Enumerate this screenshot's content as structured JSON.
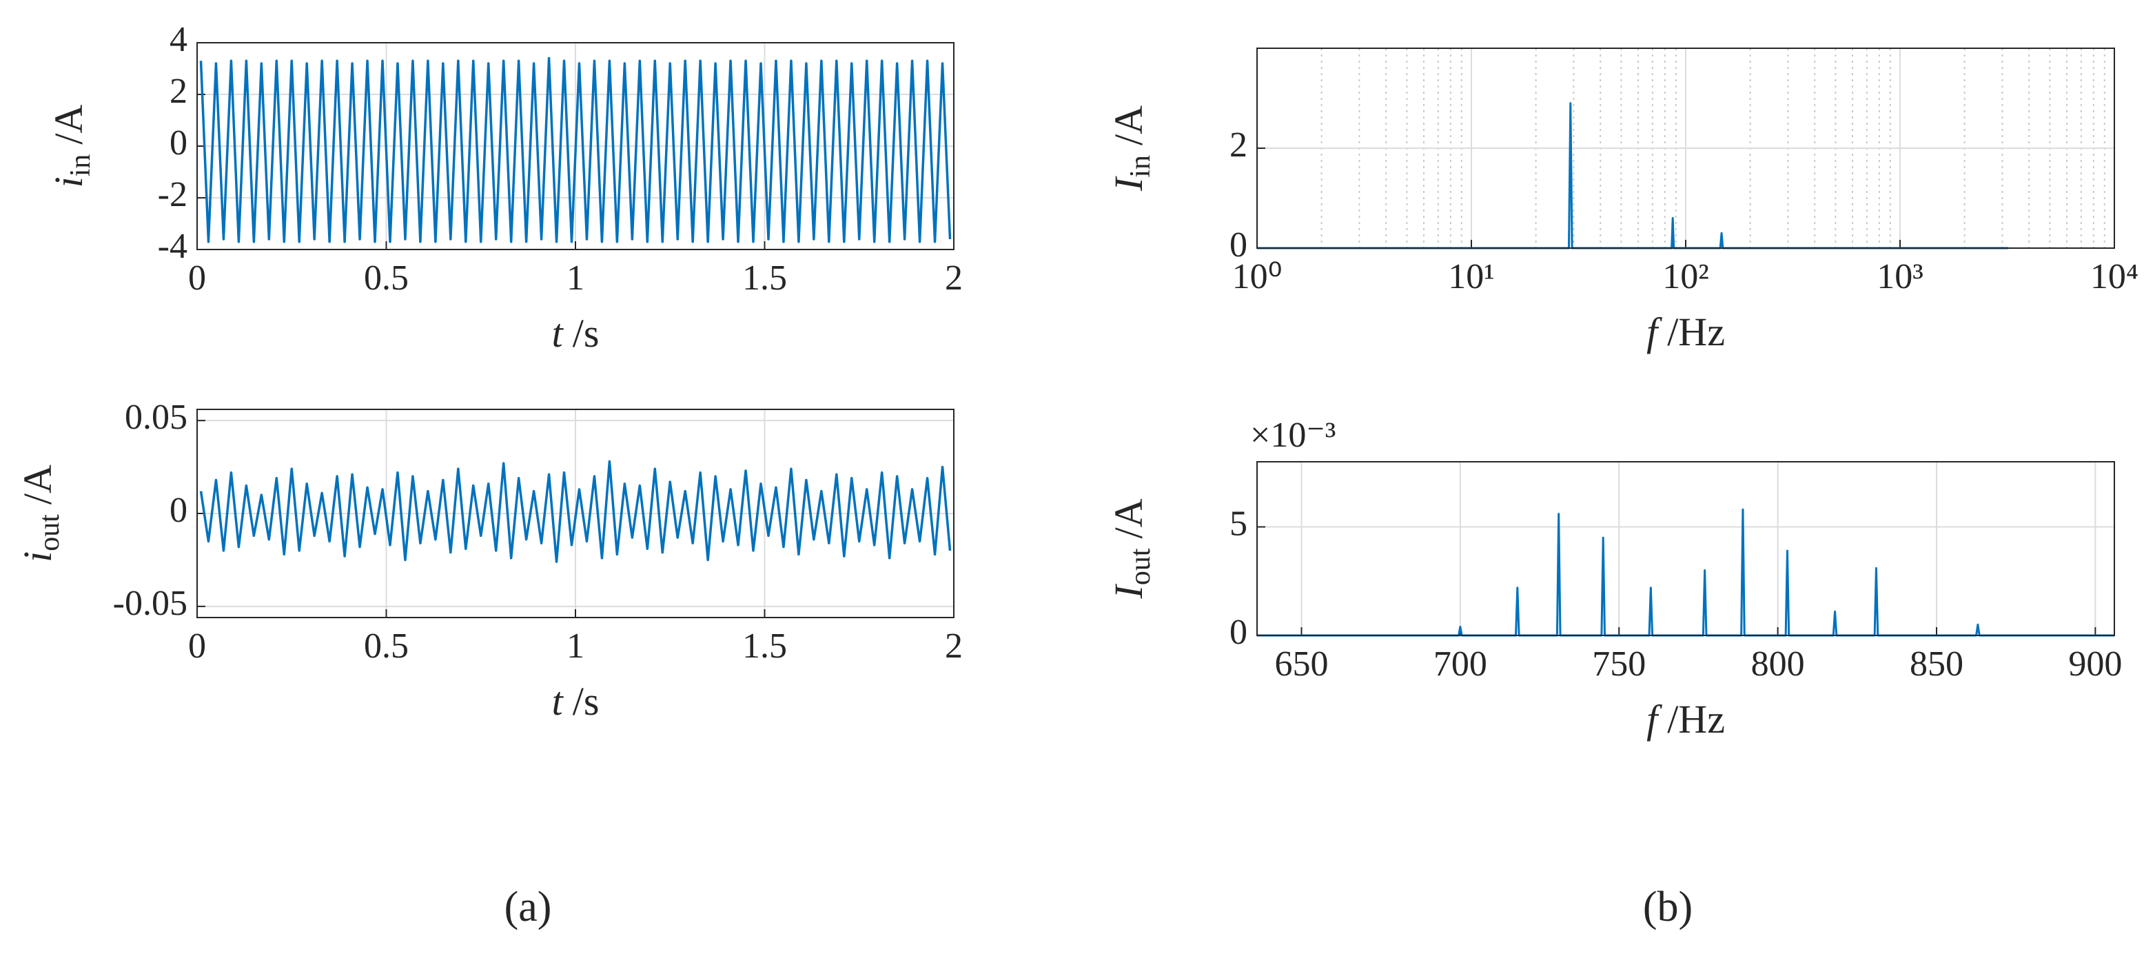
{
  "chart_data": [
    {
      "type": "line",
      "color": "#0072bd",
      "grid": true,
      "xlabel_symbol": "t",
      "xlabel_unit": "/s",
      "ylabel_symbol": "i",
      "ylabel_subscript": "in",
      "ylabel_unit": "/A",
      "xlim": [
        0,
        2
      ],
      "xticks": [
        0,
        0.5,
        1,
        1.5,
        2
      ],
      "ylim": [
        -4,
        4
      ],
      "yticks": [
        -4,
        -2,
        0,
        2,
        4
      ],
      "x": [
        0.01,
        0.03,
        0.05,
        0.07,
        0.09,
        0.11,
        0.13,
        0.15,
        0.17,
        0.19,
        0.21,
        0.23,
        0.25,
        0.27,
        0.29,
        0.31,
        0.33,
        0.35,
        0.37,
        0.39,
        0.41,
        0.43,
        0.45,
        0.47,
        0.49,
        0.51,
        0.53,
        0.55,
        0.57,
        0.59,
        0.61,
        0.63,
        0.65,
        0.67,
        0.69,
        0.71,
        0.73,
        0.75,
        0.77,
        0.79,
        0.81,
        0.83,
        0.85,
        0.87,
        0.89,
        0.91,
        0.93,
        0.95,
        0.97,
        0.99,
        1.01,
        1.03,
        1.05,
        1.07,
        1.09,
        1.11,
        1.13,
        1.15,
        1.17,
        1.19,
        1.21,
        1.23,
        1.25,
        1.27,
        1.29,
        1.31,
        1.33,
        1.35,
        1.37,
        1.39,
        1.41,
        1.43,
        1.45,
        1.47,
        1.49,
        1.51,
        1.53,
        1.55,
        1.57,
        1.59,
        1.61,
        1.63,
        1.65,
        1.67,
        1.69,
        1.71,
        1.73,
        1.75,
        1.77,
        1.79,
        1.81,
        1.83,
        1.85,
        1.87,
        1.89,
        1.91,
        1.93,
        1.95,
        1.97,
        1.99
      ],
      "values": [
        3.3,
        -3.7,
        3.2,
        -3.6,
        3.3,
        -3.7,
        3.3,
        -3.7,
        3.2,
        -3.6,
        3.3,
        -3.7,
        3.3,
        -3.7,
        3.2,
        -3.6,
        3.3,
        -3.7,
        3.3,
        -3.7,
        3.2,
        -3.6,
        3.3,
        -3.7,
        3.3,
        -3.7,
        3.2,
        -3.6,
        3.3,
        -3.7,
        3.3,
        -3.7,
        3.2,
        -3.6,
        3.3,
        -3.7,
        3.3,
        -3.7,
        3.2,
        -3.6,
        3.3,
        -3.7,
        3.3,
        -3.7,
        3.2,
        -3.6,
        3.4,
        -3.7,
        3.3,
        -3.7,
        3.2,
        -3.6,
        3.3,
        -3.7,
        3.3,
        -3.7,
        3.2,
        -3.6,
        3.3,
        -3.7,
        3.3,
        -3.7,
        3.2,
        -3.6,
        3.3,
        -3.7,
        3.3,
        -3.7,
        3.2,
        -3.6,
        3.3,
        -3.7,
        3.3,
        -3.7,
        3.2,
        -3.6,
        3.3,
        -3.7,
        3.3,
        -3.7,
        3.2,
        -3.6,
        3.3,
        -3.7,
        3.3,
        -3.7,
        3.2,
        -3.6,
        3.3,
        -3.7,
        3.3,
        -3.7,
        3.2,
        -3.6,
        3.3,
        -3.7,
        3.3,
        -3.7,
        3.2,
        -3.6
      ]
    },
    {
      "type": "line",
      "color": "#0072bd",
      "grid": true,
      "xlabel_symbol": "t",
      "xlabel_unit": "/s",
      "ylabel_symbol": "i",
      "ylabel_subscript": "out",
      "ylabel_unit": "/A",
      "xlim": [
        0,
        2
      ],
      "xticks": [
        0,
        0.5,
        1,
        1.5,
        2
      ],
      "ylim": [
        -0.056,
        0.056
      ],
      "yticks": [
        -0.05,
        0,
        0.05
      ],
      "x": [
        0.01,
        0.03,
        0.05,
        0.07,
        0.09,
        0.11,
        0.13,
        0.15,
        0.17,
        0.19,
        0.21,
        0.23,
        0.25,
        0.27,
        0.29,
        0.31,
        0.33,
        0.35,
        0.37,
        0.39,
        0.41,
        0.43,
        0.45,
        0.47,
        0.49,
        0.51,
        0.53,
        0.55,
        0.57,
        0.59,
        0.61,
        0.63,
        0.65,
        0.67,
        0.69,
        0.71,
        0.73,
        0.75,
        0.77,
        0.79,
        0.81,
        0.83,
        0.85,
        0.87,
        0.89,
        0.91,
        0.93,
        0.95,
        0.97,
        0.99,
        1.01,
        1.03,
        1.05,
        1.07,
        1.09,
        1.11,
        1.13,
        1.15,
        1.17,
        1.19,
        1.21,
        1.23,
        1.25,
        1.27,
        1.29,
        1.31,
        1.33,
        1.35,
        1.37,
        1.39,
        1.41,
        1.43,
        1.45,
        1.47,
        1.49,
        1.51,
        1.53,
        1.55,
        1.57,
        1.59,
        1.61,
        1.63,
        1.65,
        1.67,
        1.69,
        1.71,
        1.73,
        1.75,
        1.77,
        1.79,
        1.81,
        1.83,
        1.85,
        1.87,
        1.89,
        1.91,
        1.93,
        1.95,
        1.97,
        1.99
      ],
      "values": [
        0.012,
        -0.015,
        0.018,
        -0.02,
        0.022,
        -0.018,
        0.015,
        -0.012,
        0.01,
        -0.014,
        0.019,
        -0.022,
        0.024,
        -0.02,
        0.016,
        -0.012,
        0.011,
        -0.015,
        0.02,
        -0.023,
        0.021,
        -0.018,
        0.014,
        -0.011,
        0.013,
        -0.017,
        0.022,
        -0.025,
        0.02,
        -0.016,
        0.012,
        -0.014,
        0.018,
        -0.021,
        0.024,
        -0.019,
        0.015,
        -0.012,
        0.016,
        -0.02,
        0.027,
        -0.024,
        0.019,
        -0.014,
        0.012,
        -0.016,
        0.021,
        -0.026,
        0.022,
        -0.017,
        0.013,
        -0.015,
        0.02,
        -0.024,
        0.028,
        -0.022,
        0.016,
        -0.013,
        0.015,
        -0.019,
        0.024,
        -0.021,
        0.017,
        -0.013,
        0.012,
        -0.016,
        0.022,
        -0.025,
        0.02,
        -0.015,
        0.013,
        -0.017,
        0.023,
        -0.02,
        0.016,
        -0.012,
        0.014,
        -0.018,
        0.024,
        -0.022,
        0.018,
        -0.014,
        0.012,
        -0.016,
        0.021,
        -0.023,
        0.019,
        -0.015,
        0.013,
        -0.017,
        0.022,
        -0.024,
        0.02,
        -0.016,
        0.013,
        -0.015,
        0.019,
        -0.022,
        0.025,
        -0.02
      ]
    },
    {
      "type": "line",
      "color": "#0072bd",
      "grid": true,
      "minor_grid": true,
      "xscale": "log",
      "xlabel_symbol": "f",
      "xlabel_unit": "/Hz",
      "ylabel_symbol": "I",
      "ylabel_subscript": "in",
      "ylabel_unit": "/A",
      "xlim": [
        1,
        10000
      ],
      "xticks": [
        {
          "value": 1,
          "label": "10⁰"
        },
        {
          "value": 10,
          "label": "10¹"
        },
        {
          "value": 100,
          "label": "10²"
        },
        {
          "value": 1000,
          "label": "10³"
        },
        {
          "value": 10000,
          "label": "10⁴"
        }
      ],
      "ylim": [
        0,
        4
      ],
      "yticks": [
        0,
        2
      ],
      "x": [
        1,
        28.5,
        29,
        29.5,
        86,
        87,
        88,
        145,
        147,
        149,
        3200
      ],
      "values": [
        0,
        0,
        2.9,
        0,
        0,
        0.6,
        0,
        0,
        0.3,
        0,
        0
      ]
    },
    {
      "type": "line",
      "color": "#0072bd",
      "grid": true,
      "xlabel_symbol": "f",
      "xlabel_unit": "/Hz",
      "ylabel_symbol": "I",
      "ylabel_subscript": "out",
      "ylabel_unit": "/A",
      "y_multiplier": "×10⁻³",
      "xlim": [
        636,
        906
      ],
      "xticks": [
        650,
        700,
        750,
        800,
        850,
        900
      ],
      "ylim": [
        0,
        0.008
      ],
      "yticks": [
        0,
        {
          "value": 0.005,
          "label": "5"
        }
      ],
      "x": [
        636,
        699.5,
        700,
        700.5,
        717.5,
        718,
        718.5,
        730.5,
        731,
        731.5,
        744.5,
        745,
        745.5,
        759.5,
        760,
        760.5,
        776.5,
        777,
        777.5,
        788.5,
        789,
        789.5,
        802.5,
        803,
        803.5,
        817.5,
        818,
        818.5,
        830.5,
        831,
        831.5,
        862.5,
        863,
        863.5,
        906
      ],
      "values": [
        0,
        0,
        0.0004,
        0,
        0,
        0.0022,
        0,
        0,
        0.0056,
        0,
        0,
        0.0045,
        0,
        0,
        0.0022,
        0,
        0,
        0.003,
        0,
        0,
        0.0058,
        0,
        0,
        0.0039,
        0,
        0,
        0.0011,
        0,
        0,
        0.0031,
        0,
        0,
        0.0005,
        0,
        0
      ]
    }
  ],
  "panel_labels": [
    "(a)",
    "(b)"
  ]
}
